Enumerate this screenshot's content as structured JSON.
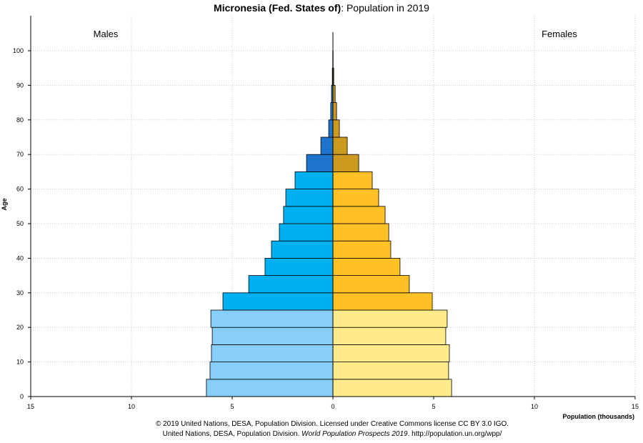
{
  "chart_data": {
    "type": "bar",
    "orientation": "horizontal-population-pyramid",
    "title_bold": "Micronesia (Fed. States of)",
    "title_rest": ": Population in 2019",
    "xlabel": "Population (thousands)",
    "ylabel": "Age",
    "left_label": "Males",
    "right_label": "Females",
    "xlim": [
      15,
      15
    ],
    "x_ticks": [
      "15",
      "10",
      "5",
      "0",
      "5",
      "10",
      "15"
    ],
    "x_tick_values": [
      -15,
      -10,
      -5,
      0,
      5,
      10,
      15
    ],
    "ylim": [
      0,
      105
    ],
    "y_ticks": [
      "0",
      "10",
      "20",
      "30",
      "40",
      "50",
      "60",
      "70",
      "80",
      "90",
      "100"
    ],
    "y_tick_values": [
      0,
      10,
      20,
      30,
      40,
      50,
      60,
      70,
      80,
      90,
      100
    ],
    "grid": true,
    "age_groups": [
      "0-4",
      "5-9",
      "10-14",
      "15-19",
      "20-24",
      "25-29",
      "30-34",
      "35-39",
      "40-44",
      "45-49",
      "50-54",
      "55-59",
      "60-64",
      "65-69",
      "70-74",
      "75-79",
      "80-84",
      "85-89",
      "90-94",
      "95-99",
      "100+"
    ],
    "series": [
      {
        "name": "Males",
        "values": [
          6.28,
          6.1,
          6.03,
          5.99,
          6.06,
          5.46,
          4.18,
          3.37,
          3.05,
          2.66,
          2.45,
          2.34,
          1.88,
          1.31,
          0.6,
          0.21,
          0.11,
          0.07,
          0.03,
          0.01,
          0.0
        ]
      },
      {
        "name": "Females",
        "values": [
          5.89,
          5.74,
          5.78,
          5.6,
          5.67,
          4.93,
          3.79,
          3.33,
          2.87,
          2.77,
          2.59,
          2.27,
          1.95,
          1.28,
          0.71,
          0.32,
          0.18,
          0.11,
          0.04,
          0.01,
          0.0
        ]
      }
    ],
    "colors": {
      "male_young": "#87cefa",
      "male_working": "#00b0f0",
      "male_old": "#1e74cc",
      "female_young": "#ffeb8a",
      "female_working": "#ffc125",
      "female_old": "#cc9a1f"
    }
  },
  "footer": {
    "line1": "© 2019 United Nations, DESA, Population Division. Licensed under Creative Commons license CC BY 3.0 IGO.",
    "line2_prefix": "United Nations, DESA, Population Division. ",
    "line2_italic": "World Population Prospects 2019",
    "line2_suffix": ". http://population.un.org/wpp/"
  }
}
